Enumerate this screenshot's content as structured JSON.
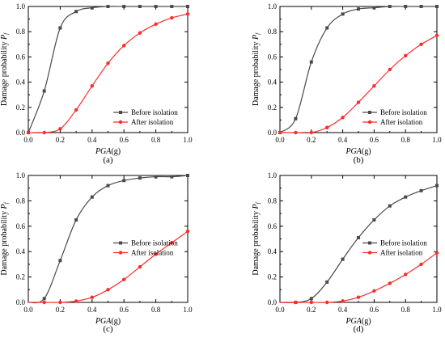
{
  "figure": {
    "background": "#ffffff"
  },
  "series_styles": {
    "before": {
      "color": "#4a4a4a",
      "marker": "square"
    },
    "after": {
      "color": "#ff2a2a",
      "marker": "circle"
    }
  },
  "chart_data": [
    {
      "type": "line",
      "panel_label": "(a)",
      "xlabel_main": "PGA",
      "xlabel_unit": "(g)",
      "ylabel_main": "Damage probability ",
      "ylabel_sub": "f",
      "ylabel_var": "P",
      "xlim": [
        0,
        1
      ],
      "ylim": [
        0,
        1
      ],
      "x_ticks": [
        "0.0",
        "0.2",
        "0.4",
        "0.6",
        "0.8",
        "1.0"
      ],
      "y_ticks": [
        "0.0",
        "0.2",
        "0.4",
        "0.6",
        "0.8",
        "1.0"
      ],
      "legend_position": "lower-right",
      "series": [
        {
          "name": "Before isolation",
          "x": [
            0,
            0.1,
            0.2,
            0.3,
            0.4,
            0.5,
            0.6,
            0.7,
            0.8,
            0.9,
            1.0
          ],
          "y": [
            0,
            0.33,
            0.83,
            0.96,
            0.99,
            1.0,
            1.0,
            1.0,
            1.0,
            1.0,
            1.0
          ]
        },
        {
          "name": "After isolation",
          "x": [
            0,
            0.1,
            0.2,
            0.3,
            0.4,
            0.5,
            0.6,
            0.7,
            0.8,
            0.9,
            1.0
          ],
          "y": [
            0,
            0,
            0.03,
            0.18,
            0.37,
            0.55,
            0.69,
            0.79,
            0.86,
            0.91,
            0.94
          ]
        }
      ]
    },
    {
      "type": "line",
      "panel_label": "(b)",
      "xlabel_main": "PGA",
      "xlabel_unit": "(g)",
      "ylabel_main": "Damage probability ",
      "ylabel_sub": "f",
      "ylabel_var": "P",
      "xlim": [
        0,
        1
      ],
      "ylim": [
        0,
        1
      ],
      "x_ticks": [
        "0.0",
        "0.2",
        "0.4",
        "0.6",
        "0.8",
        "1.0"
      ],
      "y_ticks": [
        "0.0",
        "0.2",
        "0.4",
        "0.6",
        "0.8",
        "1.0"
      ],
      "legend_position": "lower-right",
      "series": [
        {
          "name": "Before isolation",
          "x": [
            0,
            0.1,
            0.2,
            0.3,
            0.4,
            0.5,
            0.6,
            0.7,
            0.8,
            0.9,
            1.0
          ],
          "y": [
            0,
            0.11,
            0.56,
            0.83,
            0.94,
            0.98,
            0.99,
            1.0,
            1.0,
            1.0,
            1.0
          ]
        },
        {
          "name": "After isolation",
          "x": [
            0,
            0.1,
            0.2,
            0.3,
            0.4,
            0.5,
            0.6,
            0.7,
            0.8,
            0.9,
            1.0
          ],
          "y": [
            0,
            0,
            0,
            0.04,
            0.12,
            0.24,
            0.37,
            0.5,
            0.61,
            0.7,
            0.77
          ]
        }
      ]
    },
    {
      "type": "line",
      "panel_label": "(c)",
      "xlabel_main": "PGA",
      "xlabel_unit": "(g)",
      "ylabel_main": "Damage probability ",
      "ylabel_sub": "f",
      "ylabel_var": "P",
      "xlim": [
        0,
        1
      ],
      "ylim": [
        0,
        1
      ],
      "x_ticks": [
        "0.0",
        "0.2",
        "0.4",
        "0.6",
        "0.8",
        "1.0"
      ],
      "y_ticks": [
        "0.0",
        "0.2",
        "0.4",
        "0.6",
        "0.8",
        "1.0"
      ],
      "legend_position": "center-right",
      "series": [
        {
          "name": "Before isolation",
          "x": [
            0.1,
            0.2,
            0.3,
            0.4,
            0.5,
            0.6,
            0.7,
            0.8,
            0.9,
            1.0
          ],
          "y": [
            0.03,
            0.33,
            0.65,
            0.83,
            0.92,
            0.96,
            0.98,
            0.99,
            0.99,
            1.0
          ]
        },
        {
          "name": "After isolation",
          "x": [
            0.1,
            0.2,
            0.3,
            0.4,
            0.5,
            0.6,
            0.7,
            0.8,
            0.9,
            1.0
          ],
          "y": [
            0,
            0,
            0.01,
            0.04,
            0.1,
            0.18,
            0.28,
            0.38,
            0.47,
            0.56
          ]
        }
      ]
    },
    {
      "type": "line",
      "panel_label": "(d)",
      "xlabel_main": "PGA",
      "xlabel_unit": "(g)",
      "ylabel_main": "Damage probability ",
      "ylabel_sub": "f",
      "ylabel_var": "P",
      "xlim": [
        0,
        1
      ],
      "ylim": [
        0,
        1
      ],
      "x_ticks": [
        "0.0",
        "0.2",
        "0.4",
        "0.6",
        "0.8",
        "1.0"
      ],
      "y_ticks": [
        "0.0",
        "0.2",
        "0.4",
        "0.6",
        "0.8",
        "1.0"
      ],
      "legend_position": "center-right",
      "series": [
        {
          "name": "Before isolation",
          "x": [
            0.1,
            0.2,
            0.3,
            0.4,
            0.5,
            0.6,
            0.7,
            0.8,
            0.9,
            1.0
          ],
          "y": [
            0,
            0.03,
            0.16,
            0.34,
            0.51,
            0.65,
            0.76,
            0.83,
            0.88,
            0.92
          ]
        },
        {
          "name": "After isolation",
          "x": [
            0.1,
            0.2,
            0.3,
            0.4,
            0.5,
            0.6,
            0.7,
            0.8,
            0.9,
            1.0
          ],
          "y": [
            0,
            0,
            0,
            0.01,
            0.04,
            0.09,
            0.15,
            0.22,
            0.3,
            0.39
          ]
        }
      ]
    }
  ]
}
